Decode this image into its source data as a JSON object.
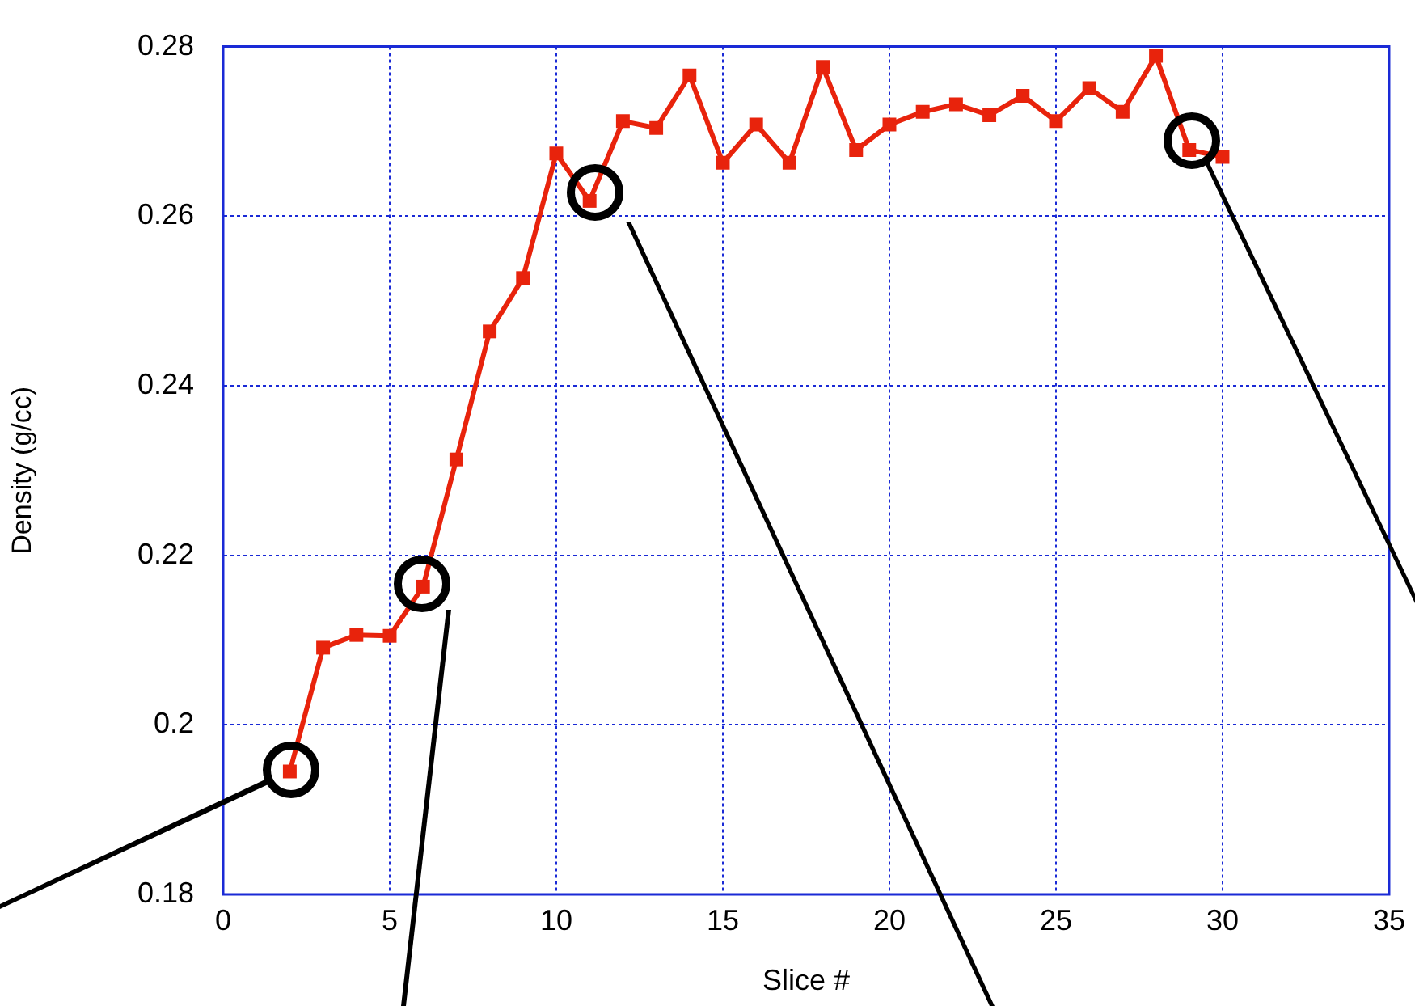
{
  "chart_data": {
    "type": "line",
    "xlabel": "Slice #",
    "ylabel": "Density (g/cc)",
    "x": [
      2,
      3,
      4,
      5,
      6,
      7,
      8,
      9,
      10,
      11,
      12,
      13,
      14,
      15,
      16,
      17,
      18,
      19,
      20,
      21,
      22,
      23,
      24,
      25,
      26,
      27,
      28,
      29,
      30
    ],
    "series": [
      {
        "color": "#e8230c",
        "values": [
          0.1945,
          0.2091,
          0.2106,
          0.2105,
          0.2163,
          0.2313,
          0.2464,
          0.2527,
          0.2674,
          0.2618,
          0.2712,
          0.2704,
          0.2766,
          0.2663,
          0.2708,
          0.2663,
          0.2776,
          0.2678,
          0.2708,
          0.2723,
          0.2732,
          0.2719,
          0.2742,
          0.2712,
          0.2751,
          0.2723,
          0.2789,
          0.2678,
          0.267
        ]
      }
    ],
    "xlim": [
      0,
      35
    ],
    "xticks": [
      0,
      5,
      10,
      15,
      20,
      25,
      30,
      35
    ],
    "ylim": [
      0.18,
      0.28
    ],
    "yticks": [
      0.18,
      0.2,
      0.22,
      0.24,
      0.26,
      0.28
    ],
    "grid": true,
    "legend": false,
    "marker": "square",
    "line_style": "solid"
  }
}
